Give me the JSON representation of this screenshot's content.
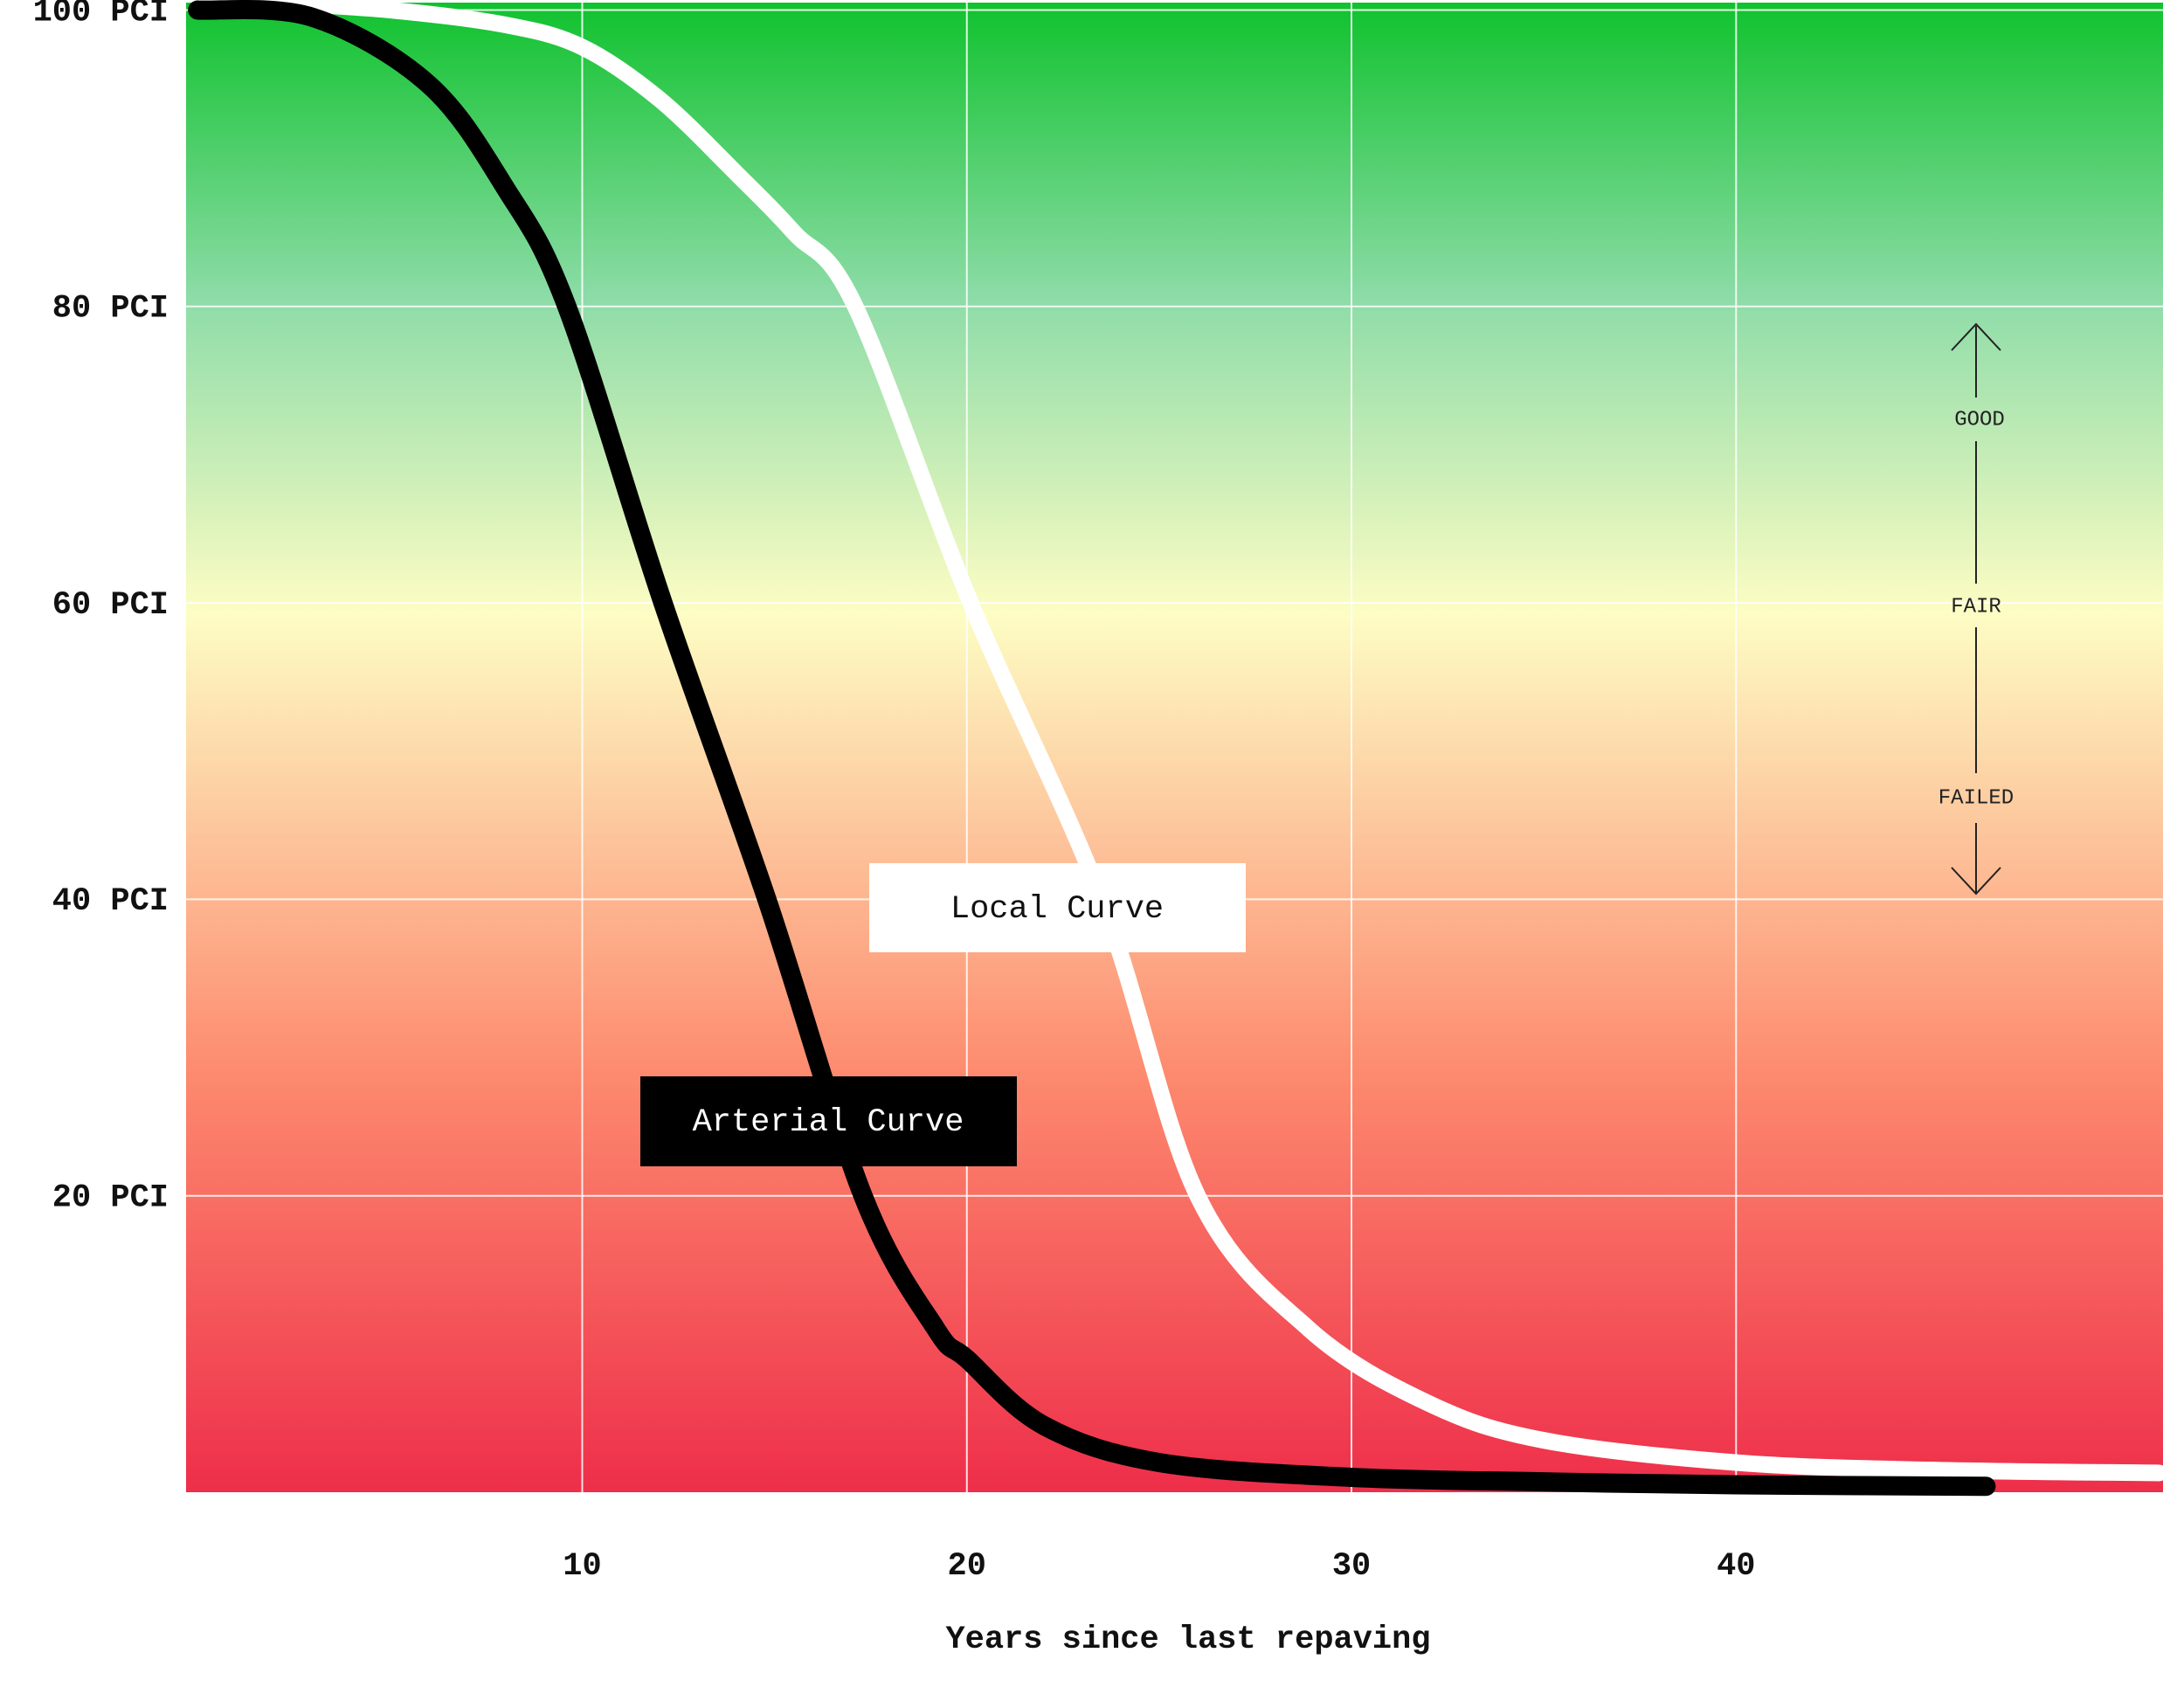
{
  "chart_data": {
    "type": "line",
    "x_label": "Years since last repaving",
    "xlim": [
      -0.3,
      51.1
    ],
    "ylim": [
      0,
      100.5
    ],
    "xticks": [
      10,
      20,
      30,
      40
    ],
    "yticks": [
      {
        "value": 20,
        "label": "20 PCI"
      },
      {
        "value": 40,
        "label": "40 PCI"
      },
      {
        "value": 60,
        "label": "60 PCI"
      },
      {
        "value": 80,
        "label": "80 PCI"
      },
      {
        "value": 100,
        "label": "100 PCI"
      }
    ],
    "grid": true,
    "series": [
      {
        "name": "Arterial Curve",
        "color": "#000000",
        "x": [
          0,
          3,
          6,
          8,
          9.6,
          12.1,
          14.8,
          17.3,
          19.2,
          20,
          22,
          25,
          30,
          35,
          40,
          46.5
        ],
        "values": [
          100,
          99.5,
          95,
          88,
          80,
          60,
          40,
          20,
          11,
          9,
          4.5,
          2,
          1,
          0.7,
          0.5,
          0.4
        ]
      },
      {
        "name": "Local Curve",
        "color": "#ffffff",
        "x": [
          2,
          5,
          8,
          10,
          12,
          14,
          15.5,
          17.1,
          20.1,
          23.5,
          26,
          28.9,
          32,
          35,
          40,
          45,
          51
        ],
        "values": [
          100.5,
          100,
          99,
          97.5,
          94,
          89,
          85,
          80,
          60,
          40,
          20,
          11,
          6,
          3.5,
          2,
          1.5,
          1.3
        ]
      }
    ],
    "annotations": [
      "GOOD",
      "FAIR",
      "FAILED"
    ]
  }
}
